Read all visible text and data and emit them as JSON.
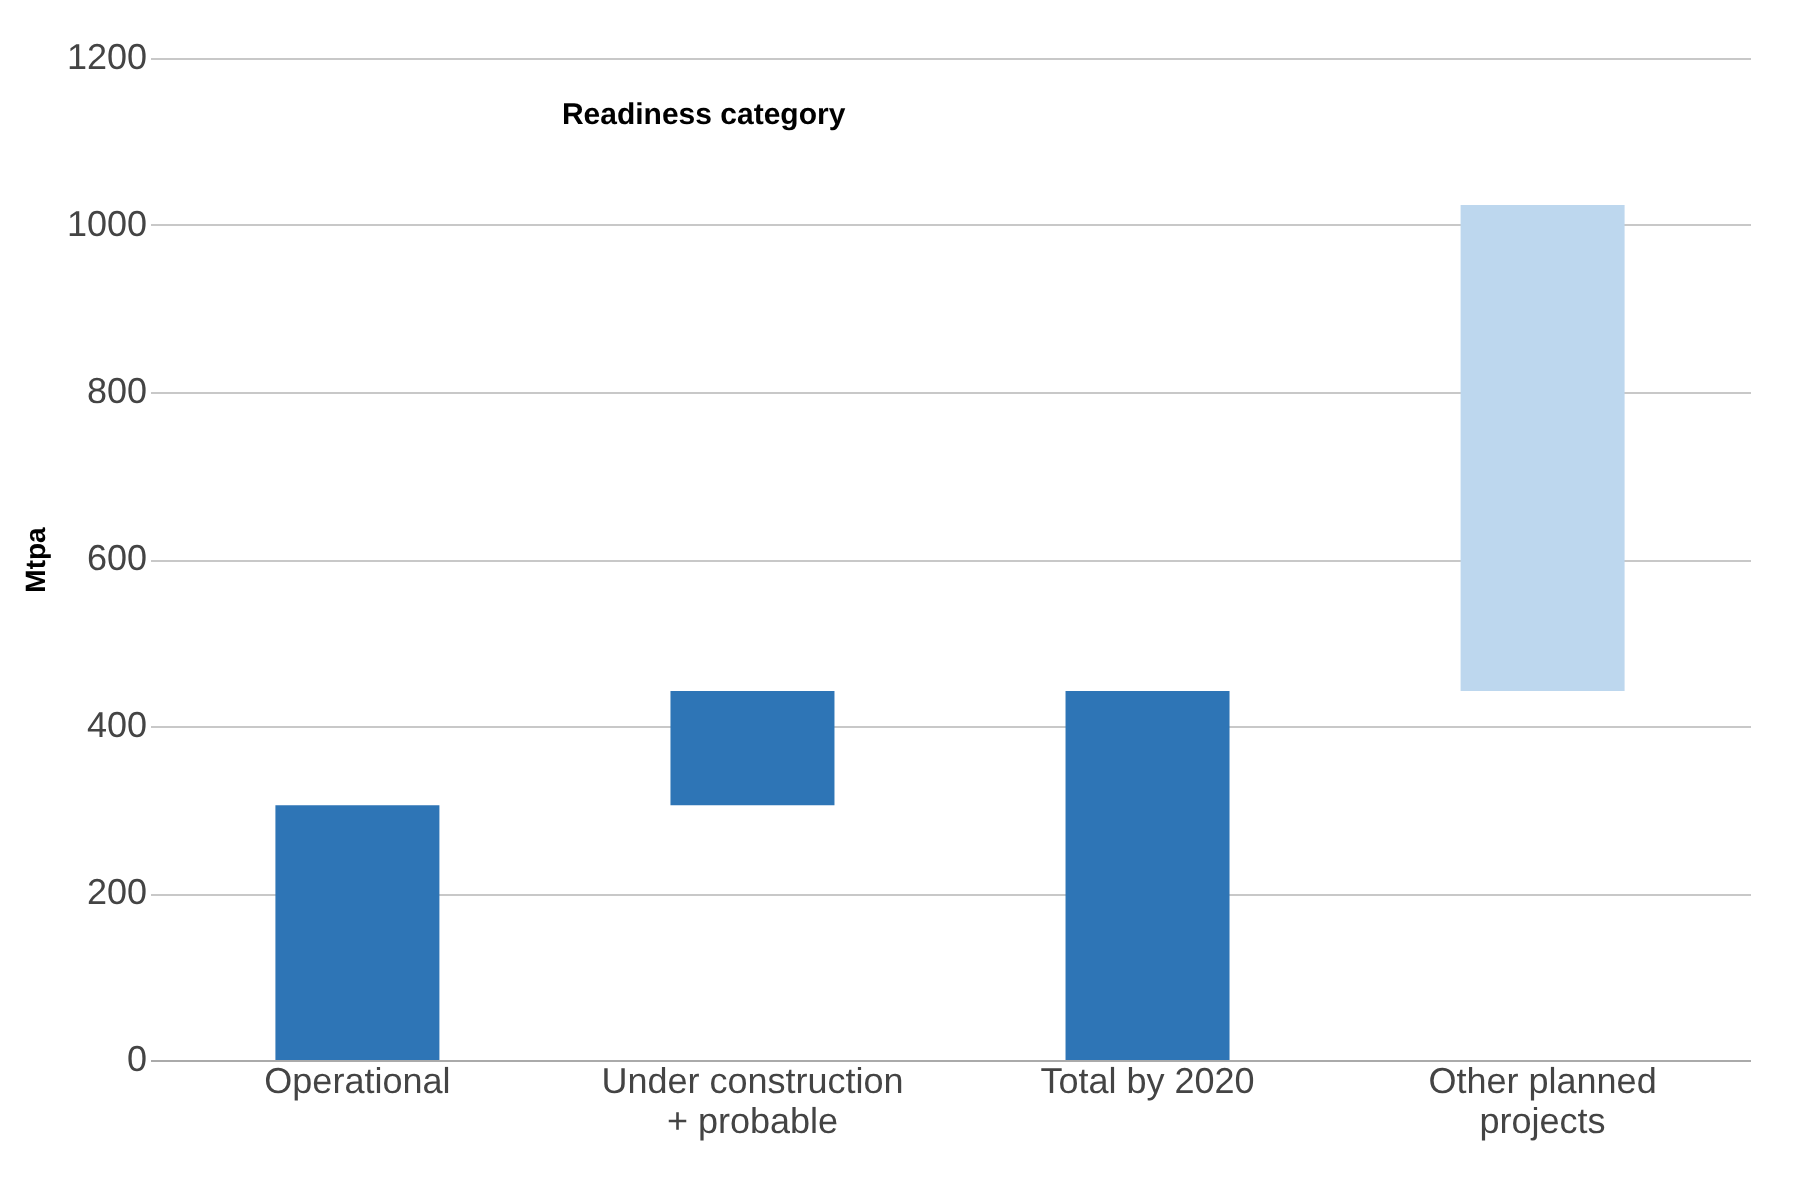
{
  "chart_data": {
    "type": "bar",
    "title": "Readiness category",
    "ylabel": "Mtpa",
    "categories": [
      "Operational",
      "Under construction\n+ probable",
      "Total by 2020",
      "Other planned\nprojects"
    ],
    "values": [
      305,
      137,
      442,
      582
    ],
    "base": [
      0,
      305,
      0,
      442
    ],
    "colors": [
      "#2e75b6",
      "#2e75b6",
      "#2e75b6",
      "#bdd7ee"
    ],
    "ylim": [
      0,
      1200
    ],
    "yticks": [
      0,
      200,
      400,
      600,
      800,
      1000,
      1200
    ],
    "grid": "y"
  }
}
